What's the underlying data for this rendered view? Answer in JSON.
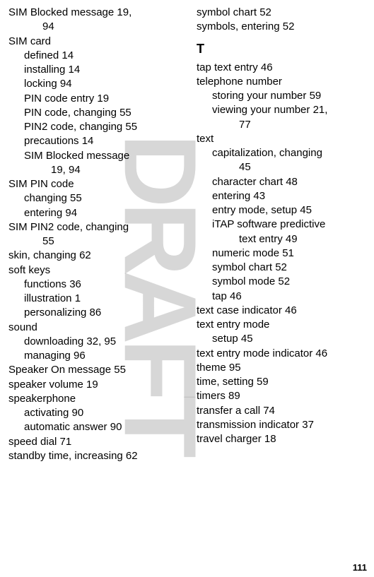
{
  "watermark": "DRAFT",
  "pageNumber": "111",
  "leftColumn": {
    "entries": [
      {
        "level": 0,
        "text": "SIM Blocked message",
        "pages": "19, 94",
        "wrap": true
      },
      {
        "level": 0,
        "text": "SIM card",
        "pages": ""
      },
      {
        "level": 1,
        "text": "defined",
        "pages": "14"
      },
      {
        "level": 1,
        "text": "installing",
        "pages": "14"
      },
      {
        "level": 1,
        "text": "locking",
        "pages": "94"
      },
      {
        "level": 1,
        "text": "PIN code entry",
        "pages": "19"
      },
      {
        "level": 1,
        "text": "PIN code, changing",
        "pages": "55"
      },
      {
        "level": 1,
        "text": "PIN2 code, changing",
        "pages": "55"
      },
      {
        "level": 1,
        "text": "precautions",
        "pages": "14"
      },
      {
        "level": 1,
        "text": "SIM Blocked message",
        "pages": "19, 94",
        "wrap": true
      },
      {
        "level": 0,
        "text": "SIM PIN code",
        "pages": ""
      },
      {
        "level": 1,
        "text": "changing",
        "pages": "55"
      },
      {
        "level": 1,
        "text": "entering",
        "pages": "94"
      },
      {
        "level": 0,
        "text": "SIM PIN2 code, changing",
        "pages": "55",
        "wrap": true
      },
      {
        "level": 0,
        "text": "skin, changing",
        "pages": "62"
      },
      {
        "level": 0,
        "text": "soft keys",
        "pages": ""
      },
      {
        "level": 1,
        "text": "functions",
        "pages": "36"
      },
      {
        "level": 1,
        "text": "illustration",
        "pages": "1"
      },
      {
        "level": 1,
        "text": "personalizing",
        "pages": "86"
      },
      {
        "level": 0,
        "text": "sound",
        "pages": ""
      },
      {
        "level": 1,
        "text": "downloading",
        "pages": "32, 95"
      },
      {
        "level": 1,
        "text": "managing",
        "pages": "96"
      },
      {
        "level": 0,
        "text": "Speaker On message",
        "pages": "55"
      },
      {
        "level": 0,
        "text": "speaker volume",
        "pages": "19"
      },
      {
        "level": 0,
        "text": "speakerphone",
        "pages": ""
      },
      {
        "level": 1,
        "text": "activating",
        "pages": "90"
      },
      {
        "level": 1,
        "text": "automatic answer",
        "pages": "90"
      },
      {
        "level": 0,
        "text": "speed dial",
        "pages": "71"
      },
      {
        "level": 0,
        "text": "standby time, increasing",
        "pages": "62"
      }
    ]
  },
  "rightColumn": {
    "preEntries": [
      {
        "level": 0,
        "text": "symbol chart",
        "pages": "52"
      },
      {
        "level": 0,
        "text": "symbols, entering",
        "pages": "52"
      }
    ],
    "sectionHeader": "T",
    "entries": [
      {
        "level": 0,
        "text": "tap text entry",
        "pages": "46"
      },
      {
        "level": 0,
        "text": "telephone number",
        "pages": ""
      },
      {
        "level": 1,
        "text": "storing your number",
        "pages": "59"
      },
      {
        "level": 1,
        "text": "viewing your number",
        "pages": "21, 77",
        "wrap": true
      },
      {
        "level": 0,
        "text": "text",
        "pages": ""
      },
      {
        "level": 1,
        "text": "capitalization, changing",
        "pages": "45",
        "wrap": true
      },
      {
        "level": 1,
        "text": "character chart",
        "pages": "48"
      },
      {
        "level": 1,
        "text": "entering",
        "pages": "43"
      },
      {
        "level": 1,
        "text": "entry mode, setup",
        "pages": "45"
      },
      {
        "level": 1,
        "text": "iTAP software predictive text entry",
        "pages": "49",
        "wrap": true
      },
      {
        "level": 1,
        "text": "numeric mode",
        "pages": "51"
      },
      {
        "level": 1,
        "text": "symbol chart",
        "pages": "52"
      },
      {
        "level": 1,
        "text": "symbol mode",
        "pages": "52"
      },
      {
        "level": 1,
        "text": "tap",
        "pages": "46"
      },
      {
        "level": 0,
        "text": "text case indicator",
        "pages": "46"
      },
      {
        "level": 0,
        "text": "text entry mode",
        "pages": ""
      },
      {
        "level": 1,
        "text": "setup",
        "pages": "45"
      },
      {
        "level": 0,
        "text": "text entry mode indicator",
        "pages": "46"
      },
      {
        "level": 0,
        "text": "theme",
        "pages": "95"
      },
      {
        "level": 0,
        "text": "time, setting",
        "pages": "59"
      },
      {
        "level": 0,
        "text": "timers",
        "pages": "89"
      },
      {
        "level": 0,
        "text": "transfer a call",
        "pages": "74"
      },
      {
        "level": 0,
        "text": "transmission indicator",
        "pages": "37"
      },
      {
        "level": 0,
        "text": "travel charger",
        "pages": "18"
      }
    ]
  },
  "style": {
    "backgroundColor": "#ffffff",
    "textColor": "#000000",
    "watermarkColor": "rgba(150,150,150,0.3)",
    "fontFamily": "Arial, Helvetica, sans-serif",
    "fontSize": 15,
    "headerFontSize": 18,
    "pageNumberFontSize": 13
  }
}
